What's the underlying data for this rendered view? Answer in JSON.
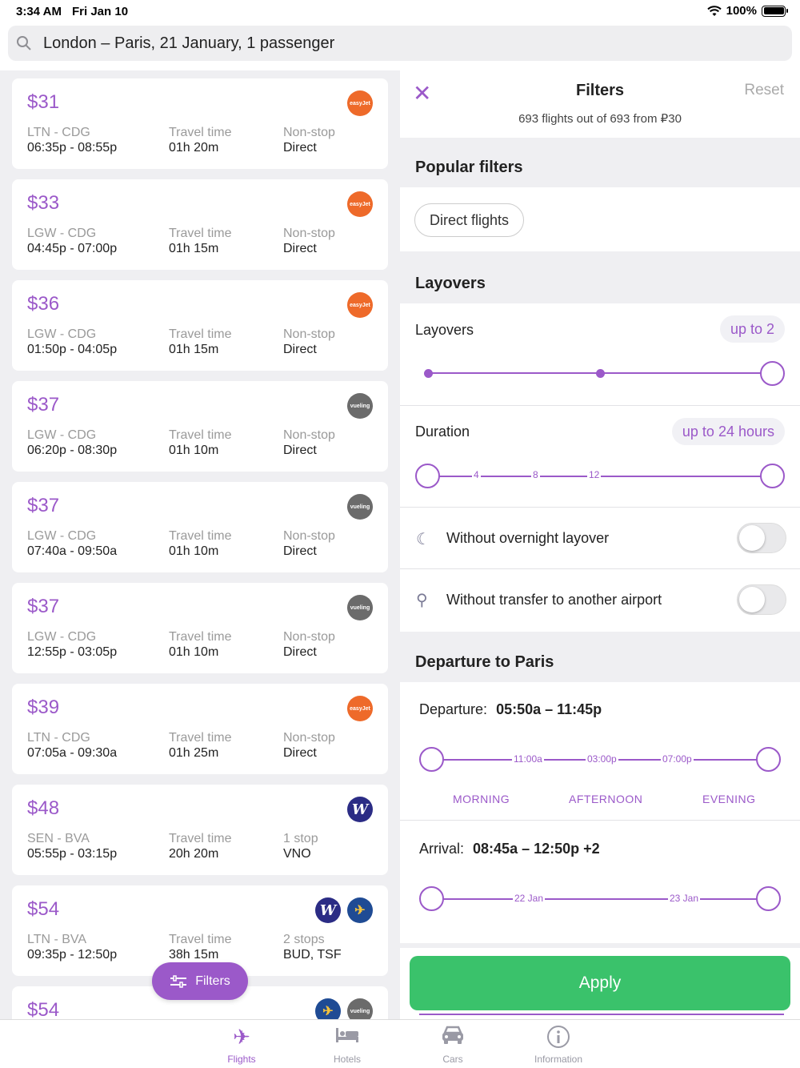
{
  "status": {
    "time": "3:34 AM",
    "date": "Fri Jan 10",
    "battery": "100%"
  },
  "search": {
    "query": "London – Paris, 21 January, 1 passenger"
  },
  "labels": {
    "travel_time": "Travel time"
  },
  "flights": [
    {
      "price": "$31",
      "route": "LTN - CDG",
      "times": "06:35p - 08:55p",
      "duration": "01h 20m",
      "stops": "Non-stop",
      "via": "Direct",
      "airlines": [
        "easyjet"
      ]
    },
    {
      "price": "$33",
      "route": "LGW - CDG",
      "times": "04:45p - 07:00p",
      "duration": "01h 15m",
      "stops": "Non-stop",
      "via": "Direct",
      "airlines": [
        "easyjet"
      ]
    },
    {
      "price": "$36",
      "route": "LGW - CDG",
      "times": "01:50p - 04:05p",
      "duration": "01h 15m",
      "stops": "Non-stop",
      "via": "Direct",
      "airlines": [
        "easyjet"
      ]
    },
    {
      "price": "$37",
      "route": "LGW - CDG",
      "times": "06:20p - 08:30p",
      "duration": "01h 10m",
      "stops": "Non-stop",
      "via": "Direct",
      "airlines": [
        "vueling"
      ]
    },
    {
      "price": "$37",
      "route": "LGW - CDG",
      "times": "07:40a - 09:50a",
      "duration": "01h 10m",
      "stops": "Non-stop",
      "via": "Direct",
      "airlines": [
        "vueling"
      ]
    },
    {
      "price": "$37",
      "route": "LGW - CDG",
      "times": "12:55p - 03:05p",
      "duration": "01h 10m",
      "stops": "Non-stop",
      "via": "Direct",
      "airlines": [
        "vueling"
      ]
    },
    {
      "price": "$39",
      "route": "LTN - CDG",
      "times": "07:05a - 09:30a",
      "duration": "01h 25m",
      "stops": "Non-stop",
      "via": "Direct",
      "airlines": [
        "easyjet"
      ]
    },
    {
      "price": "$48",
      "route": "SEN - BVA",
      "times": "05:55p - 03:15p",
      "duration": "20h 20m",
      "stops": "1 stop",
      "via": "VNO",
      "airlines": [
        "wizz"
      ]
    },
    {
      "price": "$54",
      "route": "LTN - BVA",
      "times": "09:35p - 12:50p",
      "duration": "38h 15m",
      "stops": "2 stops",
      "via": "BUD, TSF",
      "airlines": [
        "wizz",
        "ryanair"
      ]
    },
    {
      "price": "$54",
      "route": "",
      "times": "",
      "duration": "",
      "stops": "",
      "via": "",
      "airlines": [
        "ryanair",
        "vueling"
      ]
    }
  ],
  "airline_logos": {
    "easyjet": "easyJet",
    "vueling": "vueling",
    "wizz": "W",
    "ryanair": "✈"
  },
  "filters_button": {
    "label": "Filters",
    "icon": "sliders-icon"
  },
  "panel": {
    "title": "Filters",
    "reset": "Reset",
    "summary": "693 flights out of 693 from ₽30",
    "popular_title": "Popular filters",
    "direct_chip": "Direct flights",
    "layovers_section": "Layovers",
    "layovers_label": "Layovers",
    "layovers_value": "up to 2",
    "duration_label": "Duration",
    "duration_value": "up to 24 hours",
    "duration_ticks": [
      "4",
      "8",
      "12"
    ],
    "overnight_label": "Without overnight layover",
    "transfer_label": "Without transfer to another airport",
    "departure_section": "Departure to Paris",
    "departure_label": "Departure:",
    "departure_value": "05:50a – 11:45p",
    "departure_ticks": [
      "11:00a",
      "03:00p",
      "07:00p"
    ],
    "times_of_day": [
      "MORNING",
      "AFTERNOON",
      "EVENING"
    ],
    "arrival_label": "Arrival:",
    "arrival_value": "08:45a – 12:50p +2",
    "arrival_ticks": [
      "22 Jan",
      "23 Jan"
    ],
    "apply": "Apply"
  },
  "tabs": [
    {
      "label": "Flights",
      "icon": "plane-icon",
      "active": true
    },
    {
      "label": "Hotels",
      "icon": "bed-icon",
      "active": false
    },
    {
      "label": "Cars",
      "icon": "car-icon",
      "active": false
    },
    {
      "label": "Information",
      "icon": "info-icon",
      "active": false
    }
  ],
  "colors": {
    "accent": "#9b59c9",
    "apply": "#3ac26b",
    "easyjet": "#ee6a2a",
    "vueling": "#6b6b6b",
    "wizz": "#2b2c85",
    "ryanair": "#1f4b94"
  }
}
